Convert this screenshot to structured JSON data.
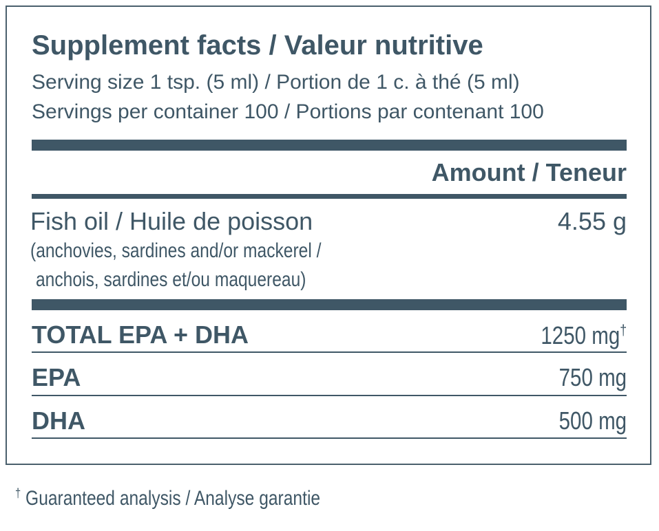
{
  "header": {
    "title": "Supplement facts / Valeur nutritive",
    "serving_size": "Serving size 1 tsp. (5 ml) / Portion de 1 c. à thé (5 ml)",
    "servings_per_container": "Servings per container 100 / Portions par contenant 100"
  },
  "table": {
    "column_header": "Amount / Teneur",
    "ingredient": {
      "name": "Fish oil / Huile de poisson",
      "amount": "4.55 g",
      "source": [
        "(anchovies, sardines and/or mackerel /",
        "anchois, sardines et/ou maquereau)"
      ]
    },
    "rows": [
      [
        "TOTAL EPA + DHA",
        "1250 mg",
        "†"
      ],
      [
        "EPA",
        "750 mg"
      ],
      [
        "DHA",
        "500 mg"
      ]
    ]
  },
  "footnote": {
    "mark": "†",
    "text": "Guaranteed analysis / Analyse garantie"
  }
}
